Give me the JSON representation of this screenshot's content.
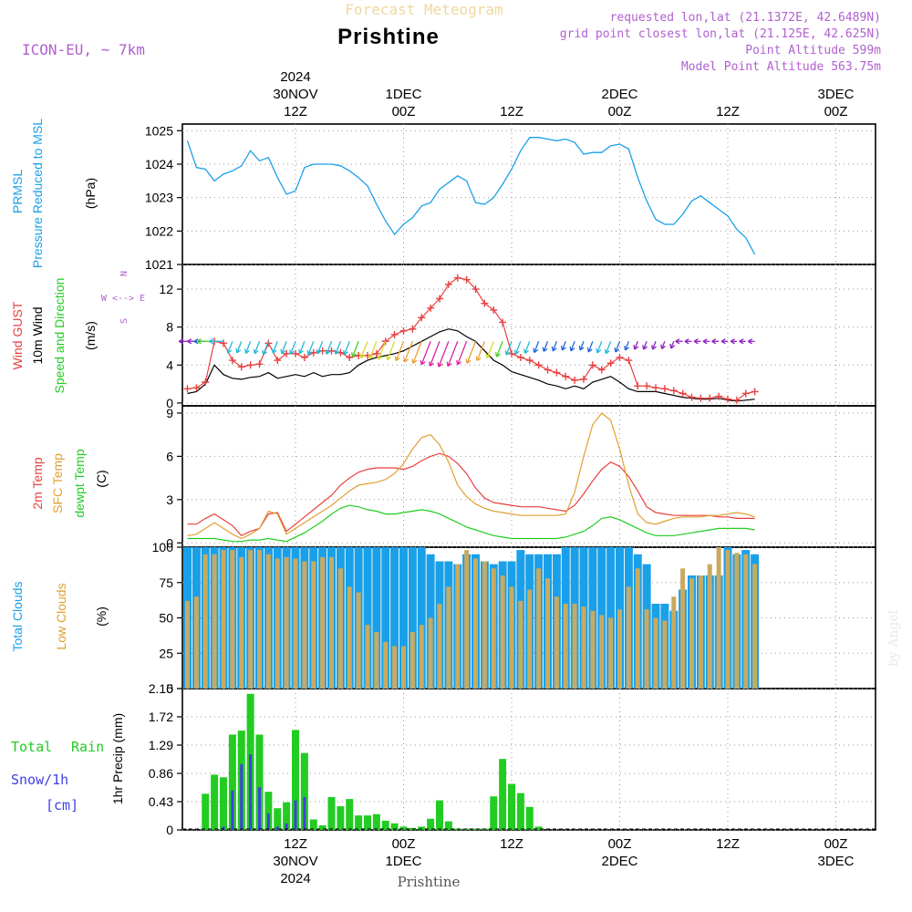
{
  "header": {
    "subtitle": "Forecast Meteogram",
    "title": "Prishtine",
    "model": "ICON-EU, ~ 7km",
    "requested": "requested lon,lat (21.1372E, 42.6489N)",
    "grid": "grid point closest lon,lat (21.125E, 42.625N)",
    "point_alt": "Point Altitude 599m",
    "model_alt": "Model Point Altitude 563.75m"
  },
  "footer": {
    "station": "Prishtine",
    "watermark": "by Angel"
  },
  "colors": {
    "pressure": "#1aa0e8",
    "gust": "#e84040",
    "wind": "#000000",
    "green": "#22cc22",
    "temp2m": "#e84040",
    "sfc": "#e0a030",
    "dewpt": "#22cc22",
    "total_clouds": "#1aa0e8",
    "low_clouds": "#c8aa60",
    "rain": "#22cc22",
    "snow": "#4040e0",
    "purple": "#b060d0"
  },
  "time_axis": {
    "top": [
      {
        "label": [
          "2024",
          "30NOV",
          "12Z"
        ]
      },
      {
        "label": [
          "1DEC",
          "00Z"
        ]
      },
      {
        "label": [
          "12Z"
        ]
      },
      {
        "label": [
          "2DEC",
          "00Z"
        ]
      },
      {
        "label": [
          "12Z"
        ]
      },
      {
        "label": [
          "3DEC",
          "00Z"
        ]
      }
    ],
    "bottom": [
      {
        "label": [
          "12Z",
          "30NOV",
          "2024"
        ]
      },
      {
        "label": [
          "00Z",
          "1DEC"
        ]
      },
      {
        "label": [
          "12Z"
        ]
      },
      {
        "label": [
          "00Z",
          "2DEC"
        ]
      },
      {
        "label": [
          "12Z"
        ]
      },
      {
        "label": [
          "00Z",
          "3DEC"
        ]
      }
    ]
  },
  "panels": {
    "pressure": {
      "labels": [
        "PRMSL",
        "Pressure Reduced to MSL",
        "(hPa)"
      ],
      "ticks": [
        "1025",
        "1024",
        "1023",
        "1022",
        "1021"
      ]
    },
    "wind": {
      "labels": [
        "Wind GUST",
        "10m Wind",
        "Speed and Direction",
        "(m/s)"
      ],
      "ticks": [
        "12",
        "8",
        "4",
        "0"
      ],
      "compass": [
        "N",
        "W <--> E",
        "S"
      ]
    },
    "temp": {
      "labels": [
        "2m Temp",
        "SFC Temp",
        "dewpt Temp",
        "(C)"
      ],
      "ticks": [
        "9",
        "6",
        "3",
        "0"
      ]
    },
    "clouds": {
      "labels": [
        "Total Clouds",
        "Low Clouds",
        "(%)"
      ],
      "ticks": [
        "100",
        "75",
        "50",
        "25",
        "0"
      ]
    },
    "precip": {
      "labels": [
        "Total",
        "Rain",
        "Snow/1h",
        "[cm]",
        "1hr Precip (mm)"
      ],
      "ticks": [
        "2.15",
        "1.72",
        "1.29",
        "0.86",
        "0.43",
        "0"
      ]
    }
  },
  "chart_data": [
    {
      "type": "line",
      "title": "PRMSL Pressure Reduced to MSL",
      "ylabel": "(hPa)",
      "ylim": [
        1021,
        1025.2
      ],
      "x_hours": [
        0,
        1,
        2,
        3,
        4,
        5,
        6,
        7,
        8,
        9,
        10,
        11,
        12,
        13,
        14,
        15,
        16,
        17,
        18,
        19,
        20,
        21,
        22,
        23,
        24,
        25,
        26,
        27,
        28,
        29,
        30,
        31,
        32,
        33,
        34,
        35,
        36,
        37,
        38,
        39,
        40,
        41,
        42,
        43,
        44,
        45,
        46,
        47,
        48,
        49,
        50,
        51,
        52,
        53,
        54,
        55,
        56,
        57,
        58,
        59,
        60,
        61,
        62,
        63
      ],
      "series": [
        {
          "name": "PRMSL",
          "values": [
            1024.7,
            1023.9,
            1023.85,
            1023.5,
            1023.7,
            1023.8,
            1023.95,
            1024.4,
            1024.1,
            1024.2,
            1023.6,
            1023.1,
            1023.2,
            1023.9,
            1024.0,
            1024.0,
            1024.0,
            1023.95,
            1023.8,
            1023.6,
            1023.35,
            1022.8,
            1022.3,
            1021.9,
            1022.2,
            1022.4,
            1022.75,
            1022.85,
            1023.25,
            1023.45,
            1023.65,
            1023.5,
            1022.85,
            1022.8,
            1023.0,
            1023.4,
            1023.85,
            1024.4,
            1024.8,
            1024.8,
            1024.75,
            1024.7,
            1024.75,
            1024.65,
            1024.3,
            1024.35,
            1024.35,
            1024.55,
            1024.6,
            1024.45,
            1023.6,
            1022.9,
            1022.35,
            1022.2,
            1022.2,
            1022.5,
            1022.9,
            1023.05,
            1022.85,
            1022.65,
            1022.45,
            1022.05,
            1021.8,
            1021.3
          ]
        }
      ]
    },
    {
      "type": "line",
      "title": "Wind GUST / 10m Wind Speed",
      "ylabel": "(m/s)",
      "ylim": [
        -0.3,
        14.6
      ],
      "x_hours": [
        0,
        1,
        2,
        3,
        4,
        5,
        6,
        7,
        8,
        9,
        10,
        11,
        12,
        13,
        14,
        15,
        16,
        17,
        18,
        19,
        20,
        21,
        22,
        23,
        24,
        25,
        26,
        27,
        28,
        29,
        30,
        31,
        32,
        33,
        34,
        35,
        36,
        37,
        38,
        39,
        40,
        41,
        42,
        43,
        44,
        45,
        46,
        47,
        48,
        49,
        50,
        51,
        52,
        53,
        54,
        55,
        56,
        57,
        58,
        59,
        60,
        61,
        62,
        63
      ],
      "series": [
        {
          "name": "Wind GUST",
          "values": [
            1.5,
            1.6,
            2.2,
            6.5,
            6.3,
            4.5,
            3.8,
            4.0,
            4.1,
            6.3,
            4.5,
            5.2,
            5.2,
            4.8,
            5.3,
            5.5,
            5.5,
            5.3,
            4.8,
            5.0,
            5.0,
            5.2,
            6.5,
            7.2,
            7.6,
            7.8,
            9.0,
            10.0,
            11.0,
            12.5,
            13.2,
            13.0,
            12.0,
            10.5,
            9.8,
            8.5,
            5.2,
            4.8,
            4.5,
            4.0,
            3.5,
            3.2,
            2.8,
            2.4,
            2.5,
            4.0,
            3.5,
            4.2,
            4.8,
            4.5,
            1.8,
            1.8,
            1.6,
            1.5,
            1.3,
            1.0,
            0.6,
            0.5,
            0.5,
            0.7,
            0.4,
            0.3,
            1.0,
            1.2
          ]
        },
        {
          "name": "10m Wind",
          "values": [
            1.0,
            1.2,
            2.0,
            4.0,
            3.0,
            2.6,
            2.5,
            2.7,
            2.8,
            3.2,
            2.6,
            2.8,
            3.0,
            2.8,
            3.2,
            2.8,
            3.0,
            3.0,
            3.2,
            4.0,
            4.5,
            4.8,
            5.0,
            5.2,
            5.5,
            6.0,
            6.5,
            7.0,
            7.5,
            7.8,
            7.6,
            7.0,
            6.5,
            5.5,
            4.5,
            4.0,
            3.3,
            3.0,
            2.7,
            2.4,
            2.0,
            1.8,
            1.5,
            1.8,
            1.5,
            2.2,
            2.5,
            2.8,
            2.2,
            1.5,
            1.2,
            1.2,
            1.2,
            1.0,
            0.8,
            0.6,
            0.5,
            0.4,
            0.4,
            0.5,
            0.3,
            0.2,
            0.3,
            0.4
          ]
        }
      ]
    },
    {
      "type": "line",
      "title": "2m Temp / SFC Temp / dewpt Temp",
      "ylabel": "(C)",
      "ylim": [
        -0.3,
        9.5
      ],
      "x_hours": [
        0,
        1,
        2,
        3,
        4,
        5,
        6,
        7,
        8,
        9,
        10,
        11,
        12,
        13,
        14,
        15,
        16,
        17,
        18,
        19,
        20,
        21,
        22,
        23,
        24,
        25,
        26,
        27,
        28,
        29,
        30,
        31,
        32,
        33,
        34,
        35,
        36,
        37,
        38,
        39,
        40,
        41,
        42,
        43,
        44,
        45,
        46,
        47,
        48,
        49,
        50,
        51,
        52,
        53,
        54,
        55,
        56,
        57,
        58,
        59,
        60,
        61,
        62,
        63
      ],
      "series": [
        {
          "name": "2m Temp",
          "values": [
            1.3,
            1.3,
            1.7,
            2.0,
            1.6,
            1.2,
            0.5,
            0.8,
            1.0,
            2.0,
            2.1,
            0.8,
            1.3,
            1.8,
            2.3,
            2.8,
            3.3,
            4.0,
            4.5,
            4.9,
            5.1,
            5.2,
            5.2,
            5.2,
            5.1,
            5.3,
            5.7,
            6.0,
            6.2,
            6.0,
            5.5,
            4.8,
            3.8,
            3.1,
            2.8,
            2.7,
            2.6,
            2.5,
            2.5,
            2.5,
            2.4,
            2.3,
            2.2,
            2.6,
            3.4,
            4.3,
            5.1,
            5.6,
            5.3,
            4.6,
            3.6,
            2.5,
            2.1,
            2.0,
            1.9,
            1.9,
            1.9,
            1.9,
            1.9,
            1.8,
            1.8,
            1.7,
            1.7,
            1.7
          ]
        },
        {
          "name": "SFC Temp",
          "values": [
            0.5,
            0.6,
            1.0,
            1.4,
            1.0,
            0.6,
            0.3,
            0.6,
            1.0,
            2.2,
            2.0,
            0.6,
            1.0,
            1.4,
            1.8,
            2.2,
            2.6,
            3.1,
            3.6,
            4.0,
            4.1,
            4.2,
            4.4,
            4.8,
            5.5,
            6.5,
            7.3,
            7.5,
            6.8,
            5.6,
            4.0,
            3.2,
            2.7,
            2.4,
            2.2,
            2.1,
            2.0,
            1.9,
            1.9,
            1.9,
            1.9,
            1.9,
            2.0,
            3.5,
            6.0,
            8.2,
            9.0,
            8.5,
            6.5,
            4.0,
            2.0,
            1.4,
            1.3,
            1.5,
            1.7,
            1.8,
            1.8,
            1.8,
            1.9,
            1.9,
            2.0,
            2.1,
            2.0,
            1.8
          ]
        },
        {
          "name": "dewpt Temp",
          "values": [
            0.3,
            0.3,
            0.3,
            0.3,
            0.2,
            0.1,
            0.1,
            0.2,
            0.2,
            0.3,
            0.2,
            0.1,
            0.4,
            0.7,
            1.1,
            1.5,
            2.0,
            2.4,
            2.6,
            2.5,
            2.3,
            2.2,
            2.0,
            2.0,
            2.1,
            2.2,
            2.3,
            2.2,
            2.0,
            1.7,
            1.4,
            1.1,
            0.9,
            0.7,
            0.5,
            0.4,
            0.3,
            0.3,
            0.3,
            0.3,
            0.3,
            0.3,
            0.4,
            0.6,
            0.8,
            1.2,
            1.7,
            1.8,
            1.6,
            1.3,
            1.0,
            0.7,
            0.5,
            0.5,
            0.5,
            0.6,
            0.7,
            0.8,
            0.9,
            1.0,
            1.0,
            1.0,
            1.0,
            0.9
          ]
        }
      ]
    },
    {
      "type": "bar",
      "title": "Total Clouds / Low Clouds",
      "ylabel": "(%)",
      "ylim": [
        0,
        100
      ],
      "x_hours": [
        0,
        1,
        2,
        3,
        4,
        5,
        6,
        7,
        8,
        9,
        10,
        11,
        12,
        13,
        14,
        15,
        16,
        17,
        18,
        19,
        20,
        21,
        22,
        23,
        24,
        25,
        26,
        27,
        28,
        29,
        30,
        31,
        32,
        33,
        34,
        35,
        36,
        37,
        38,
        39,
        40,
        41,
        42,
        43,
        44,
        45,
        46,
        47,
        48,
        49,
        50,
        51,
        52,
        53,
        54,
        55,
        56,
        57,
        58,
        59,
        60,
        61,
        62,
        63
      ],
      "series": [
        {
          "name": "Total Clouds",
          "values": [
            100,
            100,
            100,
            100,
            100,
            100,
            100,
            100,
            100,
            100,
            100,
            100,
            100,
            100,
            100,
            100,
            100,
            100,
            100,
            100,
            100,
            100,
            100,
            100,
            100,
            100,
            100,
            95,
            90,
            90,
            88,
            95,
            95,
            90,
            88,
            90,
            90,
            98,
            95,
            95,
            95,
            95,
            100,
            100,
            100,
            100,
            100,
            100,
            100,
            100,
            95,
            88,
            60,
            60,
            55,
            70,
            80,
            80,
            80,
            80,
            100,
            95,
            98,
            95
          ]
        },
        {
          "name": "Low Clouds",
          "values": [
            62,
            65,
            95,
            95,
            98,
            98,
            93,
            98,
            98,
            95,
            92,
            93,
            92,
            90,
            90,
            93,
            93,
            85,
            72,
            68,
            45,
            40,
            33,
            30,
            30,
            40,
            45,
            50,
            60,
            72,
            88,
            98,
            92,
            90,
            85,
            80,
            72,
            62,
            70,
            85,
            78,
            65,
            60,
            60,
            58,
            55,
            52,
            50,
            56,
            72,
            85,
            56,
            50,
            48,
            65,
            85,
            78,
            80,
            88,
            100,
            98,
            96,
            95,
            88
          ]
        }
      ]
    },
    {
      "type": "bar",
      "title": "1hr Precip (mm)",
      "ylabel": "1hr Precip (mm)",
      "ylim": [
        0,
        2.15
      ],
      "x_hours": [
        0,
        1,
        2,
        3,
        4,
        5,
        6,
        7,
        8,
        9,
        10,
        11,
        12,
        13,
        14,
        15,
        16,
        17,
        18,
        19,
        20,
        21,
        22,
        23,
        24,
        25,
        26,
        27,
        28,
        29,
        30,
        31,
        32,
        33,
        34,
        35,
        36,
        37,
        38,
        39,
        40,
        41,
        42,
        43,
        44,
        45,
        46,
        47,
        48,
        49,
        50,
        51,
        52,
        53,
        54,
        55,
        56,
        57,
        58,
        59,
        60,
        61,
        62,
        63
      ],
      "series": [
        {
          "name": "Total Rain",
          "values": [
            0,
            0,
            0.55,
            0.84,
            0.8,
            1.45,
            1.51,
            2.07,
            1.45,
            0.58,
            0.33,
            0.42,
            1.52,
            1.17,
            0.16,
            0.07,
            0.5,
            0.36,
            0.47,
            0.22,
            0.22,
            0.24,
            0.14,
            0.1,
            0.05,
            0.03,
            0.05,
            0.17,
            0.45,
            0.13,
            0.02,
            0.02,
            0.02,
            0.02,
            0.51,
            1.08,
            0.7,
            0.56,
            0.35,
            0.05,
            0,
            0,
            0,
            0,
            0,
            0,
            0,
            0,
            0,
            0,
            0,
            0,
            0,
            0,
            0,
            0,
            0,
            0,
            0,
            0,
            0,
            0,
            0,
            0
          ]
        },
        {
          "name": "Snow/1h",
          "values": [
            0,
            0,
            0,
            0,
            0.05,
            0.6,
            1.0,
            1.15,
            0.65,
            0.25,
            0.05,
            0.1,
            0.45,
            0.5,
            0,
            0,
            0,
            0,
            0,
            0,
            0,
            0,
            0,
            0,
            0,
            0,
            0,
            0,
            0,
            0,
            0,
            0,
            0,
            0,
            0,
            0,
            0,
            0,
            0,
            0,
            0,
            0,
            0,
            0,
            0,
            0,
            0,
            0,
            0,
            0,
            0,
            0,
            0,
            0,
            0,
            0,
            0,
            0,
            0,
            0,
            0,
            0,
            0,
            0
          ]
        }
      ]
    }
  ]
}
